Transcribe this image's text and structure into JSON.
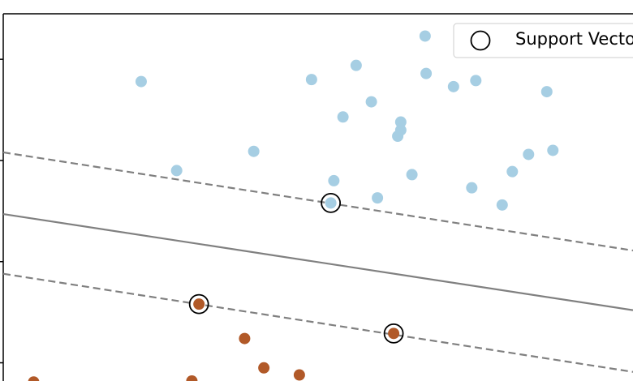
{
  "chart_data": {
    "type": "scatter",
    "xlim": [
      0,
      6.21
    ],
    "ylim": [
      -0.18,
      3.45
    ],
    "yticks": [
      0,
      1,
      2,
      3
    ],
    "groups": [
      {
        "color": "#a6cee3",
        "x": [
          1.36,
          3.04,
          3.48,
          4.16,
          4.17,
          4.44,
          4.66,
          5.36,
          3.63,
          3.35,
          3.92,
          3.92,
          3.89,
          2.47,
          1.71,
          3.26,
          4.03,
          5.02,
          5.18,
          5.42,
          4.62,
          4.92,
          3.69,
          3.23
        ],
        "y": [
          2.78,
          2.8,
          2.94,
          3.23,
          2.86,
          2.73,
          2.79,
          2.68,
          2.58,
          2.43,
          2.38,
          2.3,
          2.24,
          2.09,
          1.9,
          1.8,
          1.86,
          1.89,
          2.06,
          2.1,
          1.73,
          1.56,
          1.63,
          1.58
        ]
      },
      {
        "color": "#b15928",
        "x": [
          1.93,
          3.85,
          2.38,
          2.57,
          2.92,
          1.86,
          0.3
        ],
        "y": [
          0.58,
          0.29,
          0.24,
          -0.05,
          -0.12,
          -0.18,
          -0.19
        ]
      }
    ],
    "lines": [
      {
        "color": "#808080",
        "dash": false,
        "x": [
          0,
          6.21
        ],
        "y": [
          1.47,
          0.52
        ]
      },
      {
        "color": "#808080",
        "dash": true,
        "x": [
          0,
          6.21
        ],
        "y": [
          2.08,
          1.11
        ]
      },
      {
        "color": "#808080",
        "dash": true,
        "x": [
          0,
          6.21
        ],
        "y": [
          0.88,
          -0.09
        ]
      }
    ],
    "series": [
      {
        "name": "Support Vectors",
        "color": "#000000",
        "x": [
          3.23,
          1.93,
          3.85
        ],
        "values": [
          1.58,
          0.58,
          0.29
        ]
      }
    ]
  }
}
